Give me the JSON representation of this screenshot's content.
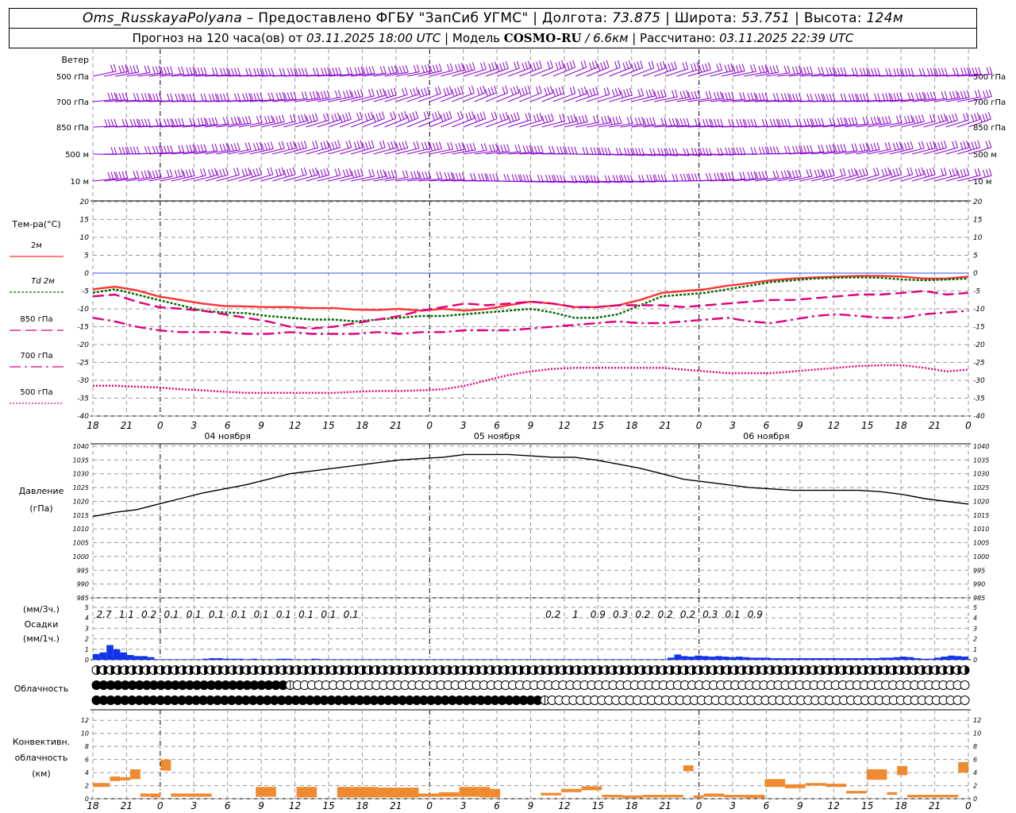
{
  "header": {
    "station": "Oms_RusskayaPolyana",
    "dash": " – ",
    "provider": "Предоставлено ФГБУ \"ЗапСиб УГМС\"",
    "sep": " | ",
    "lon_label": "Долгота: ",
    "lon": "73.875",
    "lat_label": "Широта: ",
    "lat": "53.751",
    "alt_label": "Высота: ",
    "alt": "124м",
    "forecast_label": "Прогноз на 120 часа(ов) от ",
    "forecast_from": "03.11.2025 18:00 UTC",
    "model_label": "  | Модель ",
    "model": "COSMO-RU",
    "resolution": " / 6.6км",
    "calc_label": " | Рассчитано: ",
    "calc_time": "03.11.2025 22:39 UTC"
  },
  "colors": {
    "wind": "#8800cc",
    "t2m": "#ff3333",
    "td2m": "#006600",
    "t850": "#e0007a",
    "t700": "#e0007a",
    "t500": "#e0007a",
    "pressure": "#000000",
    "precip": "#1133ee",
    "convective": "#f08a30",
    "grid": "#999999"
  },
  "time_axis": {
    "hours": [
      18,
      21,
      0,
      3,
      6,
      9,
      12,
      15,
      18,
      21,
      0,
      3,
      6,
      9,
      12,
      15,
      18,
      21,
      0,
      3,
      6,
      9,
      12,
      15,
      18,
      21,
      0
    ],
    "date_labels": [
      "04 ноября",
      "05 ноября",
      "06 ноября"
    ]
  },
  "wind_panel": {
    "title": "Ветер",
    "levels": [
      "500 гПа",
      "700 гПа",
      "850 гПа",
      "500 м",
      "10  м"
    ]
  },
  "temp_panel": {
    "title": "Тем-ра(°С)",
    "legend": [
      {
        "label": "2м",
        "series": "t2m"
      },
      {
        "label": "Td  2м",
        "series": "td2m"
      },
      {
        "label": "850 гПа",
        "series": "t850"
      },
      {
        "label": "700 гПа",
        "series": "t700"
      },
      {
        "label": "500 гПа",
        "series": "t500"
      }
    ],
    "ticks": [
      20,
      15,
      10,
      5,
      0,
      -5,
      -10,
      -15,
      -20,
      -25,
      -30,
      -35,
      -40
    ],
    "ylim": [
      -40,
      20
    ]
  },
  "pressure_panel": {
    "title": "Давление",
    "unit": "(гПа)",
    "ticks": [
      1040,
      1035,
      1030,
      1025,
      1020,
      1015,
      1010,
      1005,
      1000,
      995,
      990,
      985
    ],
    "ylim": [
      985,
      1040
    ]
  },
  "precip_panel": {
    "label_3h": "(мм/3ч.)",
    "title": "Осадки",
    "label_1h": "(мм/1ч.)",
    "ticks": [
      5,
      4,
      3,
      2,
      1,
      0
    ],
    "ylim": [
      0,
      5
    ]
  },
  "cloud_panel": {
    "title": "Облачность"
  },
  "conv_panel": {
    "title_1": "Конвективн.",
    "title_2": "облачность",
    "unit": "(км)",
    "ticks": [
      12,
      10,
      8,
      6,
      4,
      2,
      0
    ],
    "ylim": [
      0,
      13
    ]
  },
  "chart_data": {
    "type": "line",
    "x": [
      0,
      3,
      6,
      9,
      12,
      15,
      18,
      21,
      24,
      27,
      30,
      33,
      36,
      39,
      42,
      45,
      48,
      51,
      54,
      57,
      60,
      63,
      66,
      69,
      72,
      75,
      78,
      81,
      84,
      87,
      90,
      93,
      96,
      99,
      102,
      105,
      108,
      111,
      114,
      117,
      120
    ],
    "temperature": {
      "series": [
        {
          "key": "t2m",
          "name": "2м",
          "values": [
            -4.5,
            -3.8,
            -4.8,
            -6.5,
            -7.5,
            -8.5,
            -9.2,
            -9.3,
            -9.5,
            -9.5,
            -9.8,
            -9.8,
            -10.2,
            -10.3,
            -10.0,
            -10.5,
            -10.0,
            -10.5,
            -10.0,
            -9.0,
            -8.0,
            -8.5,
            -9.5,
            -9.5,
            -9.0,
            -7.5,
            -5.5,
            -5.0,
            -4.5,
            -3.5,
            -2.8,
            -2.0,
            -1.5,
            -1.2,
            -1.0,
            -0.8,
            -0.8,
            -1.0,
            -1.5,
            -1.5,
            -1.0
          ]
        },
        {
          "key": "td2m",
          "name": "Td 2м",
          "values": [
            -5.5,
            -4.5,
            -6.0,
            -7.5,
            -9.0,
            -10.5,
            -11.0,
            -11.2,
            -12.0,
            -12.5,
            -13.0,
            -13.0,
            -13.5,
            -13.0,
            -12.5,
            -12.0,
            -12.0,
            -11.5,
            -11.0,
            -10.5,
            -10.0,
            -11.0,
            -12.5,
            -12.5,
            -11.5,
            -9.0,
            -6.5,
            -6.0,
            -5.5,
            -4.5,
            -3.5,
            -2.5,
            -2.0,
            -1.5,
            -1.3,
            -1.2,
            -1.3,
            -1.8,
            -2.0,
            -1.8,
            -1.5
          ]
        },
        {
          "key": "t850",
          "name": "850 гПа",
          "values": [
            -6.5,
            -6.0,
            -8.0,
            -9.5,
            -10.0,
            -10.5,
            -11.5,
            -12.5,
            -13.5,
            -15.0,
            -15.5,
            -15.0,
            -14.0,
            -13.0,
            -12.0,
            -10.5,
            -9.5,
            -8.5,
            -9.0,
            -8.5,
            -8.0,
            -8.5,
            -9.5,
            -9.5,
            -9.0,
            -9.0,
            -9.0,
            -9.5,
            -9.0,
            -8.5,
            -8.0,
            -7.5,
            -7.5,
            -7.0,
            -6.5,
            -6.0,
            -6.0,
            -5.5,
            -5.0,
            -6.0,
            -5.5
          ]
        },
        {
          "key": "t700",
          "name": "700 гПа",
          "values": [
            -12.5,
            -13.5,
            -15.0,
            -16.0,
            -16.5,
            -16.5,
            -16.5,
            -17.0,
            -17.0,
            -16.5,
            -17.0,
            -17.0,
            -17.0,
            -16.5,
            -17.0,
            -16.5,
            -16.5,
            -16.0,
            -16.0,
            -16.0,
            -15.5,
            -15.0,
            -14.5,
            -14.0,
            -13.5,
            -14.0,
            -14.0,
            -13.5,
            -13.0,
            -12.5,
            -13.5,
            -14.0,
            -13.0,
            -12.0,
            -11.5,
            -12.0,
            -12.5,
            -12.5,
            -11.5,
            -11.0,
            -10.5
          ]
        },
        {
          "key": "t500",
          "name": "500 гПа",
          "values": [
            -31.5,
            -31.5,
            -31.8,
            -32.0,
            -32.5,
            -32.8,
            -33.2,
            -33.5,
            -33.5,
            -33.5,
            -33.5,
            -33.5,
            -33.2,
            -33.0,
            -33.0,
            -32.8,
            -32.5,
            -31.5,
            -30.0,
            -28.5,
            -27.5,
            -26.8,
            -26.5,
            -26.5,
            -26.5,
            -26.5,
            -26.5,
            -27.0,
            -27.5,
            -28.0,
            -28.0,
            -28.0,
            -27.5,
            -27.0,
            -26.5,
            -26.0,
            -25.8,
            -25.8,
            -26.5,
            -27.5,
            -27.0
          ]
        }
      ]
    },
    "pressure": [
      1014.5,
      1016,
      1017,
      1019,
      1021,
      1023,
      1024.5,
      1026,
      1028,
      1030,
      1031,
      1032,
      1033,
      1034,
      1035,
      1035.5,
      1036,
      1037,
      1037,
      1037,
      1036.5,
      1036,
      1036,
      1035,
      1033.5,
      1032,
      1030,
      1028,
      1027,
      1026,
      1025,
      1024.5,
      1024,
      1024,
      1024,
      1024,
      1023.5,
      1022.5,
      1021,
      1020,
      1019
    ],
    "precip_3h": [
      {
        "t": 3,
        "v": "2.7"
      },
      {
        "t": 9,
        "v": "1.1"
      },
      {
        "t": 15,
        "v": "0.2"
      },
      {
        "t": 21,
        "v": "0.1"
      },
      {
        "t": 27,
        "v": "0.1"
      },
      {
        "t": 33,
        "v": "0.1"
      },
      {
        "t": 39,
        "v": "0.1"
      },
      {
        "t": 45,
        "v": "0.1"
      },
      {
        "t": 51,
        "v": "0.1"
      },
      {
        "t": 57,
        "v": "0.1"
      },
      {
        "t": 63,
        "v": "0.1"
      },
      {
        "t": 69,
        "v": "0.1"
      },
      {
        "t": 123,
        "v": "0.2"
      },
      {
        "t": 129,
        "v": "1"
      },
      {
        "t": 135,
        "v": "0.9"
      },
      {
        "t": 141,
        "v": "0.3"
      },
      {
        "t": 147,
        "v": "0.2"
      },
      {
        "t": 153,
        "v": "0.2"
      },
      {
        "t": 159,
        "v": "0.2"
      },
      {
        "t": 165,
        "v": "0.3"
      },
      {
        "t": 171,
        "v": "0.1"
      },
      {
        "t": 177,
        "v": "0.9"
      }
    ],
    "precip_1h": [
      0.55,
      0.7,
      1.4,
      1.0,
      0.7,
      0.45,
      0.35,
      0.35,
      0.25,
      0.05,
      0.05,
      0.05,
      0.05,
      0.05,
      0.05,
      0.05,
      0.1,
      0.15,
      0.15,
      0.1,
      0.1,
      0.1,
      0.05,
      0.1,
      0.05,
      0.05,
      0.05,
      0.1,
      0.1,
      0.05,
      0.05,
      0.05,
      0.1,
      0.05,
      0.05,
      0.05,
      0.05,
      0.05,
      0.05,
      0.05,
      0.05,
      0.05,
      0.05,
      0.05,
      0.05,
      0.05,
      0.05,
      0.05,
      0.05,
      0.05,
      0.05,
      0.05,
      0.05,
      0.05,
      0.05,
      0.05,
      0.05,
      0.05,
      0.05,
      0.05,
      0.05,
      0.05,
      0.05,
      0.05,
      0.05,
      0.05,
      0.05,
      0.05,
      0.05,
      0.05,
      0.05,
      0.05,
      0.05,
      0.05,
      0.05,
      0.05,
      0.05,
      0.05,
      0.05,
      0.05,
      0.05,
      0.05,
      0.05,
      0.05,
      0.2,
      0.5,
      0.35,
      0.3,
      0.4,
      0.35,
      0.3,
      0.35,
      0.3,
      0.25,
      0.3,
      0.25,
      0.2,
      0.2,
      0.2,
      0.15,
      0.15,
      0.15,
      0.15,
      0.15,
      0.15,
      0.15,
      0.15,
      0.15,
      0.15,
      0.15,
      0.15,
      0.15,
      0.15,
      0.15,
      0.15,
      0.2,
      0.2,
      0.25,
      0.3,
      0.25,
      0.15,
      0.1,
      0.1,
      0.2,
      0.3,
      0.4,
      0.35,
      0.3
    ],
    "cloud_rows": [
      "hhhhhhhhhhhhhhhhhhhhhhhhhhhhhhhhhhhhhhhhhhhhhhhhhhhhhhhhhhhhhhhhhhhhhhhhhhhhhhhhhhhhhhhhhhhhhhhhhhhhhhhhhhhhhhhhhhhhhhhhhh",
      "FFFFFFFFFFFFFFFFFFFFFFFFFFFHOOOOOOOOOOOOOOOOOOOOOOOOOOOOOOOOOOOOOOOOOOOOOOOOOOOOOOOOOOOOOOOOOOOOOOOOOOOOOOOOOOOOOOOOOOOOOO",
      "FFFFFFFFFFFFFFFFFFFFFFFFFFFFFFFFFFFFFFFFFFFFFFFFFFFFFFFFFFFFFFFHOOOOOOOOOOOOOOOOOOOOOOOOOOOOOOOOOOOOOOOOOOOOOOOOOOOOOOOOOOO"
    ],
    "convective": [
      {
        "t0": 0,
        "t1": 5,
        "b": 1.8,
        "h": 0.6
      },
      {
        "t0": 5,
        "t1": 8,
        "b": 2.7,
        "h": 0.7
      },
      {
        "t0": 8,
        "t1": 11,
        "b": 2.8,
        "h": 0.5
      },
      {
        "t0": 11,
        "t1": 14,
        "b": 3.0,
        "h": 1.5
      },
      {
        "t0": 14,
        "t1": 17,
        "b": 0.3,
        "h": 0.5
      },
      {
        "t0": 17,
        "t1": 20,
        "b": 0.2,
        "h": 0.6
      },
      {
        "t0": 20,
        "t1": 23,
        "b": 4.3,
        "h": 1.7
      },
      {
        "t0": 23,
        "t1": 35,
        "b": 0.3,
        "h": 0.5
      },
      {
        "t0": 48,
        "t1": 54,
        "b": 0.3,
        "h": 1.5
      },
      {
        "t0": 60,
        "t1": 66,
        "b": 0.2,
        "h": 1.6
      },
      {
        "t0": 72,
        "t1": 84,
        "b": 0.2,
        "h": 1.6
      },
      {
        "t0": 84,
        "t1": 96,
        "b": 0.2,
        "h": 1.5
      },
      {
        "t0": 96,
        "t1": 102,
        "b": 0.3,
        "h": 0.5
      },
      {
        "t0": 102,
        "t1": 108,
        "b": 0.3,
        "h": 0.7
      },
      {
        "t0": 108,
        "t1": 114,
        "b": 0.3,
        "h": 1.5
      },
      {
        "t0": 114,
        "t1": 117,
        "b": 0.2,
        "h": 1.6
      },
      {
        "t0": 117,
        "t1": 120,
        "b": 0.2,
        "h": 1.3
      },
      {
        "t0": 132,
        "t1": 138,
        "b": 0.5,
        "h": 0.4
      },
      {
        "t0": 138,
        "t1": 144,
        "b": 1.0,
        "h": 0.5
      },
      {
        "t0": 144,
        "t1": 150,
        "b": 1.3,
        "h": 0.6
      },
      {
        "t0": 150,
        "t1": 156,
        "b": 0.2,
        "h": 0.4
      },
      {
        "t0": 156,
        "t1": 162,
        "b": 0.1,
        "h": 0.4
      },
      {
        "t0": 162,
        "t1": 168,
        "b": 0.2,
        "h": 0.4
      },
      {
        "t0": 168,
        "t1": 171,
        "b": 0.2,
        "h": 0.4
      },
      {
        "t0": 171,
        "t1": 174,
        "b": 0.2,
        "h": 0.4
      },
      {
        "t0": 174,
        "t1": 177,
        "b": 4.2,
        "h": 0.9
      },
      {
        "t0": 177,
        "t1": 180,
        "b": 0.1,
        "h": 0.4
      },
      {
        "t0": 180,
        "t1": 186,
        "b": 0.3,
        "h": 0.5
      },
      {
        "t0": 186,
        "t1": 192,
        "b": 0.2,
        "h": 0.4
      },
      {
        "t0": 192,
        "t1": 198,
        "b": 0.1,
        "h": 0.5
      },
      {
        "t0": 198,
        "t1": 204,
        "b": 1.8,
        "h": 1.2
      },
      {
        "t0": 204,
        "t1": 210,
        "b": 1.6,
        "h": 0.6
      },
      {
        "t0": 210,
        "t1": 216,
        "b": 2.0,
        "h": 0.4
      },
      {
        "t0": 216,
        "t1": 222,
        "b": 1.8,
        "h": 0.5
      },
      {
        "t0": 222,
        "t1": 228,
        "b": 0.8,
        "h": 0.4
      },
      {
        "t0": 228,
        "t1": 234,
        "b": 2.9,
        "h": 1.6
      },
      {
        "t0": 234,
        "t1": 237,
        "b": 0.6,
        "h": 0.4
      },
      {
        "t0": 237,
        "t1": 240,
        "b": 3.6,
        "h": 1.4
      },
      {
        "t0": 240,
        "t1": 246,
        "b": 0.2,
        "h": 0.4
      },
      {
        "t0": 246,
        "t1": 252,
        "b": 0.2,
        "h": 0.4
      },
      {
        "t0": 252,
        "t1": 255,
        "b": 0.2,
        "h": 0.4
      },
      {
        "t0": 255,
        "t1": 258,
        "b": 4.0,
        "h": 1.6
      }
    ]
  }
}
